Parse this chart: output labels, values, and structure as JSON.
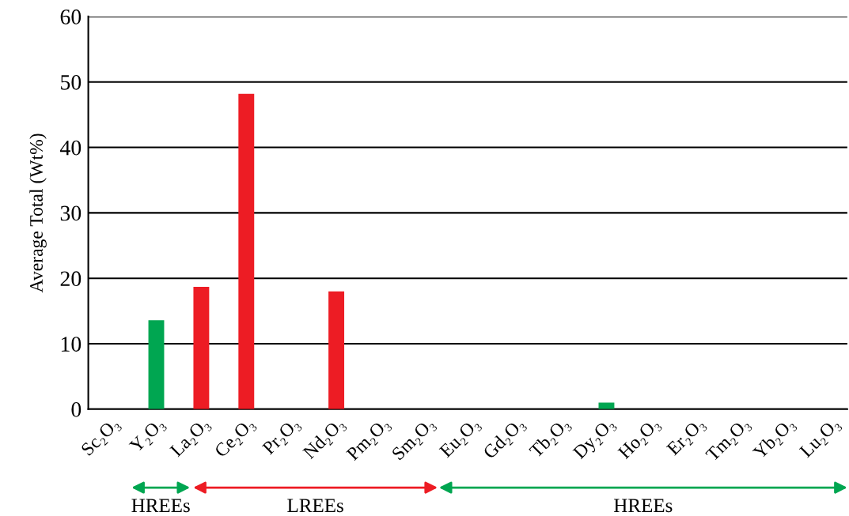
{
  "chart_data": {
    "type": "bar",
    "ylabel": "Average Total (Wt%)",
    "categories": [
      "Sc₂O₃",
      "Y₂O₃",
      "La₂O₃",
      "Ce₂O₃",
      "Pr₂O₃",
      "Nd₂O₃",
      "Pm₂O₃",
      "Sm₂O₃",
      "Eu₂O₃",
      "Gd₂O₃",
      "Tb₂O₃",
      "Dy₂O₃",
      "Ho₂O₃",
      "Er₂O₃",
      "Tm₂O₃",
      "Yb₂O₃",
      "Lu₂O₃"
    ],
    "values": [
      0,
      13.6,
      18.7,
      48.2,
      0,
      18.0,
      0,
      0,
      0,
      0,
      0,
      1.0,
      0,
      0,
      0,
      0,
      0
    ],
    "colors": [
      "#00a651",
      "#00a651",
      "#ed1c24",
      "#ed1c24",
      "#ed1c24",
      "#ed1c24",
      "#ed1c24",
      "#ed1c24",
      "#00a651",
      "#00a651",
      "#00a651",
      "#00a651",
      "#00a651",
      "#00a651",
      "#00a651",
      "#00a651",
      "#00a651"
    ],
    "ylim": [
      0,
      60
    ],
    "yticks": [
      0,
      10,
      20,
      30,
      40,
      50,
      60
    ],
    "grid": "y",
    "annotations": [
      "HREEs",
      "LREEs",
      "HREEs"
    ]
  }
}
